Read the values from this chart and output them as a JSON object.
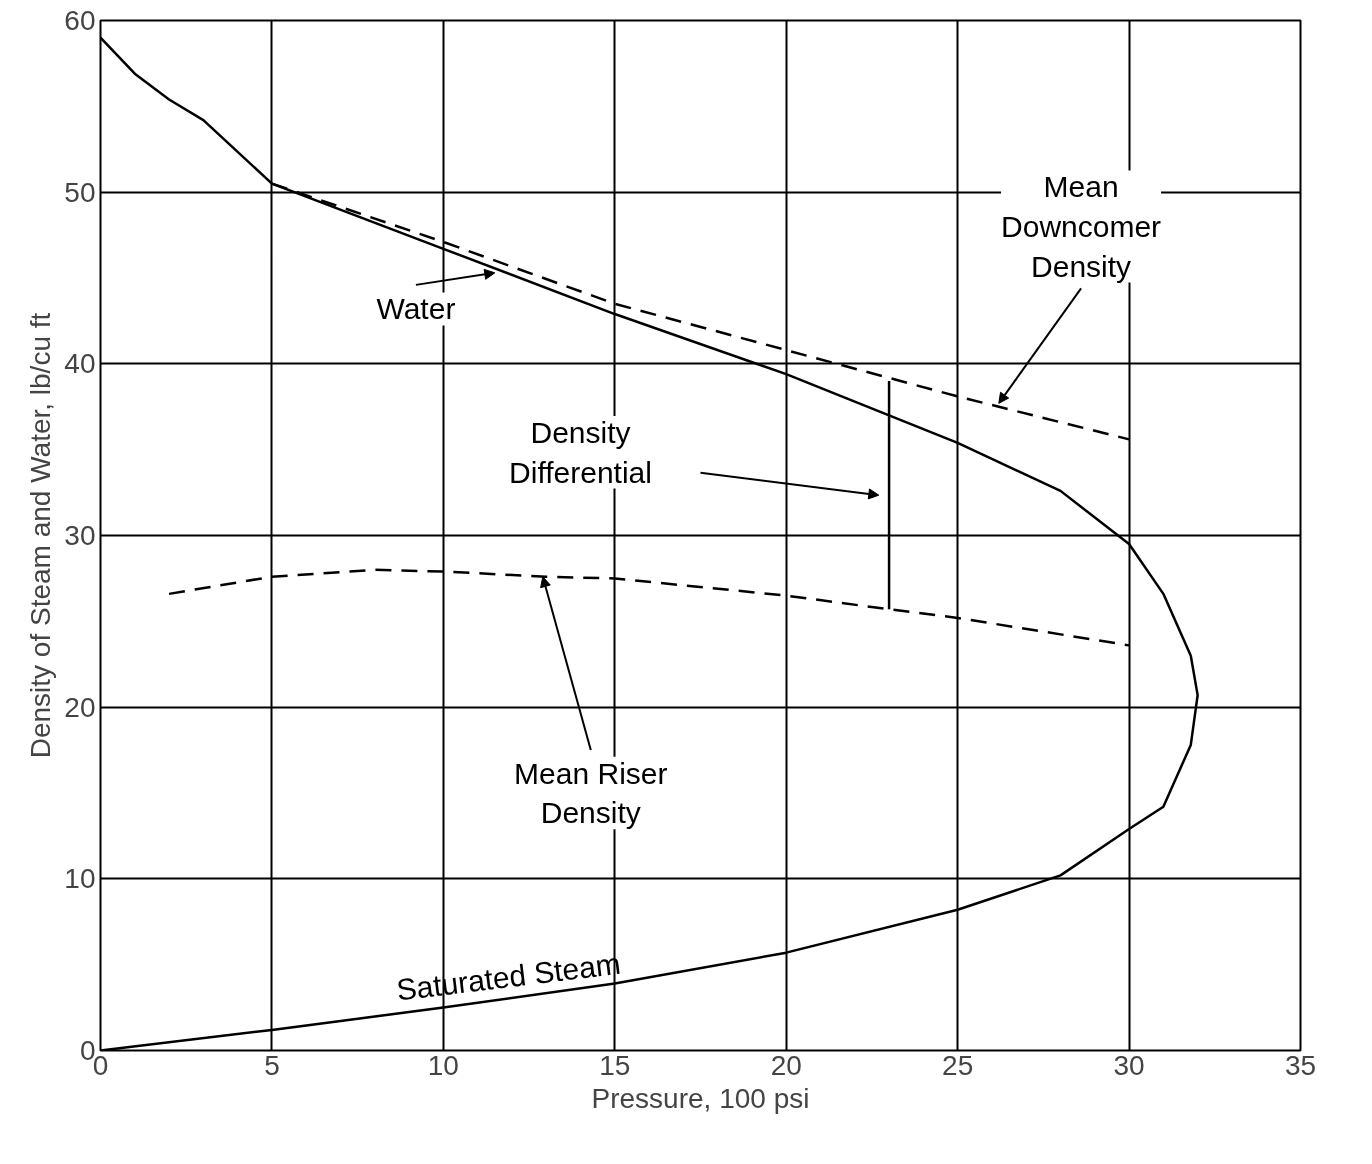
{
  "chart_data": {
    "type": "line",
    "xlabel": "Pressure, 100 psi",
    "ylabel": "Density of Steam and Water, lb/cu ft",
    "xlim": [
      0,
      35
    ],
    "ylim": [
      0,
      60
    ],
    "xticks": [
      0,
      5,
      10,
      15,
      20,
      25,
      30,
      35
    ],
    "yticks": [
      0,
      10,
      20,
      30,
      40,
      50,
      60
    ],
    "grid": true,
    "marker": "none",
    "series": [
      {
        "color": "#000000",
        "line_style": "solid",
        "x": [
          0,
          1,
          2,
          3,
          5,
          10,
          15,
          20,
          25,
          28,
          30,
          31,
          31.8,
          32,
          31.8,
          31,
          30,
          28,
          25,
          20,
          15,
          10,
          5,
          0
        ],
        "values": [
          59,
          56.9,
          55.4,
          54.2,
          50.5,
          46.7,
          42.9,
          39.4,
          35.4,
          32.6,
          29.5,
          26.6,
          23,
          20.7,
          17.8,
          14.2,
          12.9,
          10.2,
          8.2,
          5.7,
          3.9,
          2.5,
          1.2,
          0
        ]
      },
      {
        "color": "#000000",
        "line_style": "dashed",
        "x": [
          5,
          10,
          15,
          20,
          25,
          30
        ],
        "values": [
          50.5,
          47.1,
          43.5,
          40.8,
          38.1,
          35.6
        ]
      },
      {
        "color": "#000000",
        "line_style": "dashed",
        "x": [
          2,
          5,
          8,
          10,
          13,
          15,
          20,
          23,
          25,
          30
        ],
        "values": [
          26.6,
          27.6,
          28,
          27.9,
          27.6,
          27.5,
          26.5,
          25.7,
          25.2,
          23.6
        ]
      },
      {
        "color": "#000000",
        "line_style": "solid",
        "x": [
          23,
          23
        ],
        "values": [
          25.7,
          39
        ]
      }
    ],
    "annotations": [
      {
        "text": "Water",
        "x": 11.5,
        "y": 45.3
      },
      {
        "text": "Mean\nDowncomer\nDensity",
        "x": 26.2,
        "y": 37.7
      },
      "Density\nDifferential",
      {
        "text": "Mean Riser\nDensity",
        "x": 12.9,
        "y": 27.6
      },
      {
        "text": "Saturated Steam",
        "x": 12,
        "y": 3.0
      }
    ]
  }
}
